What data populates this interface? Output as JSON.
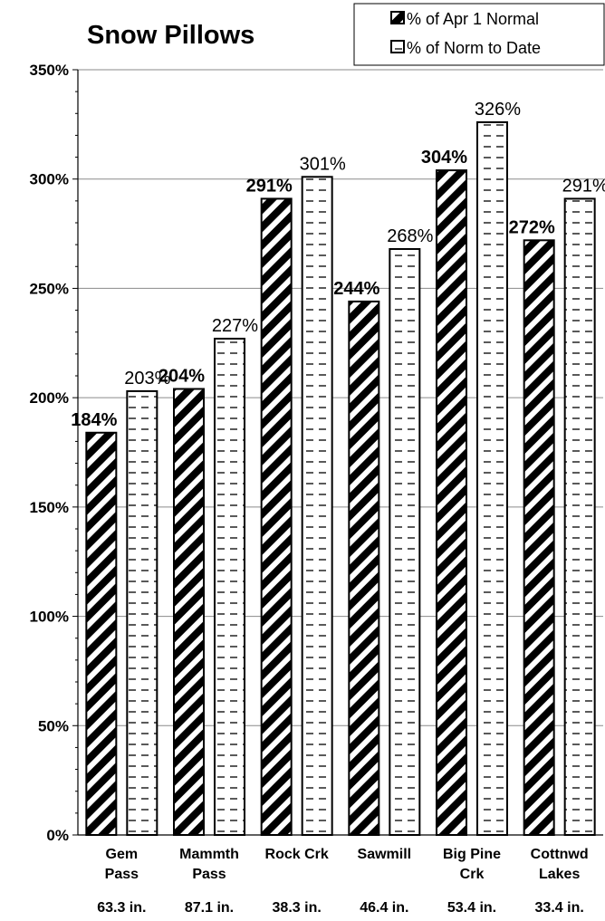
{
  "chart_data": {
    "type": "bar",
    "title": "Snow Pillows",
    "categories": [
      [
        "Gem",
        "Pass"
      ],
      [
        "Mammth",
        "Pass"
      ],
      [
        "Rock Crk"
      ],
      [
        "Sawmill"
      ],
      [
        "Big Pine",
        "Crk"
      ],
      [
        "Cottnwd",
        "Lakes"
      ]
    ],
    "sublabels": [
      "63.3 in.",
      "87.1 in.",
      "38.3 in.",
      "46.4 in.",
      "53.4 in.",
      "33.4 in."
    ],
    "series": [
      {
        "name": "% of Apr 1 Normal",
        "values": [
          184,
          204,
          291,
          244,
          304,
          272
        ],
        "labels": [
          "184%",
          "204%",
          "291%",
          "244%",
          "304%",
          "272%"
        ],
        "pattern": "diagonal-black"
      },
      {
        "name": "% of Norm to Date",
        "values": [
          203,
          227,
          301,
          268,
          326,
          291
        ],
        "labels": [
          "203%",
          "227%",
          "301%",
          "268%",
          "326%",
          "291%"
        ],
        "pattern": "dashed-white"
      }
    ],
    "ylim": [
      0,
      350
    ],
    "yticks": [
      0,
      50,
      100,
      150,
      200,
      250,
      300,
      350
    ],
    "ytick_labels": [
      "0%",
      "50%",
      "100%",
      "150%",
      "200%",
      "250%",
      "300%",
      "350%"
    ],
    "grid": true,
    "legend_position": "top-right",
    "xlabel": "",
    "ylabel": ""
  }
}
